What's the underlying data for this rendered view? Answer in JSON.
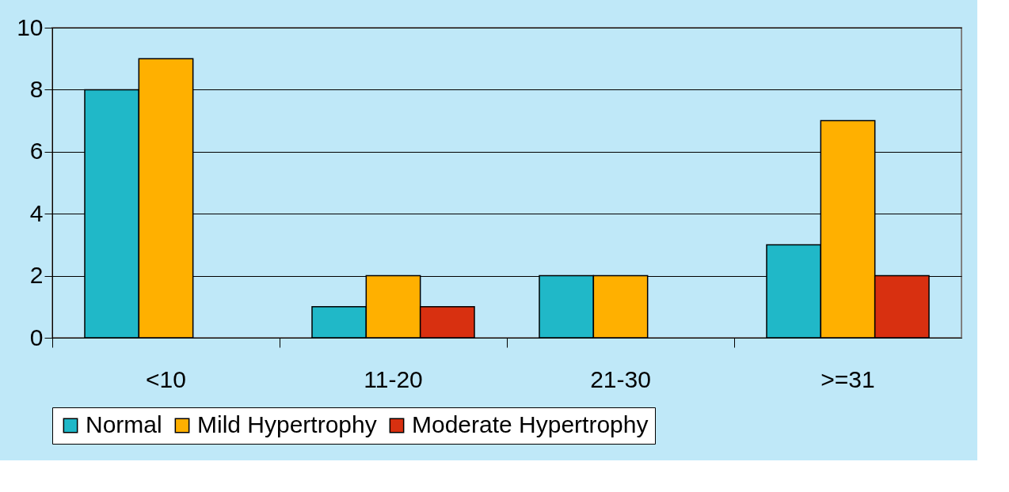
{
  "chart_data": {
    "type": "bar",
    "categories": [
      "<10",
      "11-20",
      "21-30",
      ">=31"
    ],
    "series": [
      {
        "name": "Normal",
        "color": "#20b8c8",
        "values": [
          8,
          1,
          2,
          3
        ]
      },
      {
        "name": "Mild Hypertrophy",
        "color": "#ffb000",
        "values": [
          9,
          2,
          2,
          7
        ]
      },
      {
        "name": "Moderate Hypertrophy",
        "color": "#d83010",
        "values": [
          null,
          1,
          null,
          2
        ]
      }
    ],
    "ylim": [
      0,
      10
    ],
    "yticks": [
      0,
      2,
      4,
      6,
      8,
      10
    ],
    "grid": "y",
    "legend": "bottom"
  }
}
